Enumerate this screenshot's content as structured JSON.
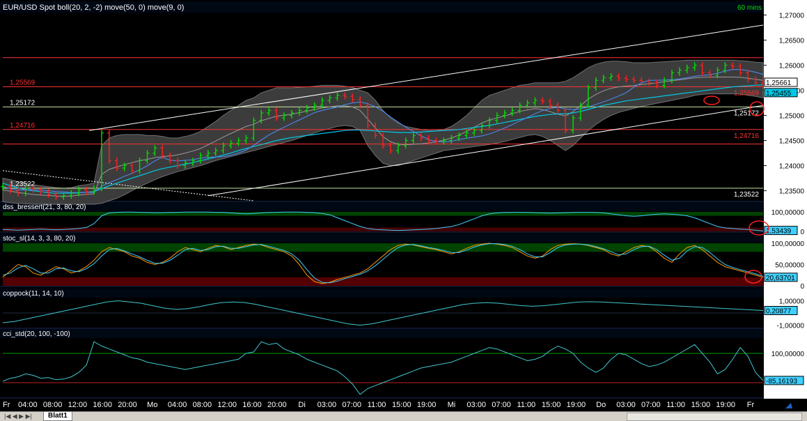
{
  "chart_data": {
    "type": "candlestick",
    "timeframe_label": "60 mins",
    "main_panel": {
      "title": "EUR/USD Spot boll(20, 2, -2) move(50, 0) move(9, 0)",
      "y_ticks": [
        "1,27000",
        "1,26500",
        "1,26000",
        "1,25500",
        "1,25000",
        "1,24500",
        "1,24000",
        "1,23500"
      ],
      "last_prices": [
        "1,25661",
        "1,25455"
      ],
      "h_levels": [
        {
          "value": 1.2615,
          "label": ""
        },
        {
          "value": 1.2557,
          "label": "1,25569"
        },
        {
          "value": 1.2517,
          "label": "1,25172"
        },
        {
          "value": 1.2472,
          "label": "1,24716"
        },
        {
          "value": 1.2443,
          "label": ""
        },
        {
          "value": 1.2355,
          "label": "1,23522"
        }
      ],
      "ohlc_close": [
        1.2358,
        1.235,
        1.2345,
        1.2355,
        1.2352,
        1.2348,
        1.2342,
        1.2338,
        1.234,
        1.2345,
        1.2352,
        1.2348,
        1.2355,
        1.2465,
        1.241,
        1.2395,
        1.24,
        1.239,
        1.241,
        1.2425,
        1.2435,
        1.242,
        1.241,
        1.24,
        1.2405,
        1.241,
        1.242,
        1.2425,
        1.243,
        1.244,
        1.2445,
        1.245,
        1.2455,
        1.249,
        1.2505,
        1.251,
        1.2495,
        1.25,
        1.2505,
        1.251,
        1.2515,
        1.252,
        1.253,
        1.2535,
        1.254,
        1.2538,
        1.2532,
        1.252,
        1.248,
        1.246,
        1.244,
        1.243,
        1.244,
        1.245,
        1.246,
        1.2455,
        1.245,
        1.2448,
        1.245,
        1.2455,
        1.246,
        1.2465,
        1.247,
        1.248,
        1.249,
        1.25,
        1.2505,
        1.251,
        1.252,
        1.2525,
        1.253,
        1.2528,
        1.252,
        1.251,
        1.247,
        1.2495,
        1.252,
        1.2555,
        1.257,
        1.2575,
        1.2578,
        1.2574,
        1.2572,
        1.257,
        1.2568,
        1.2565,
        1.256,
        1.257,
        1.2585,
        1.259,
        1.2595,
        1.26,
        1.2585,
        1.258,
        1.259,
        1.26,
        1.2598,
        1.2585,
        1.2572,
        1.2565,
        1.2562
      ],
      "boll_upper": [
        1.2375,
        1.2372,
        1.2368,
        1.2365,
        1.2362,
        1.236,
        1.2358,
        1.2356,
        1.2355,
        1.2356,
        1.236,
        1.2362,
        1.2365,
        1.244,
        1.2455,
        1.246,
        1.2462,
        1.2462,
        1.2462,
        1.246,
        1.246,
        1.2458,
        1.2455,
        1.2455,
        1.2458,
        1.2462,
        1.2468,
        1.2478,
        1.2488,
        1.25,
        1.251,
        1.252,
        1.253,
        1.2535,
        1.2545,
        1.255,
        1.2555,
        1.2555,
        1.2555,
        1.2556,
        1.2557,
        1.2558,
        1.256,
        1.256,
        1.256,
        1.2558,
        1.2556,
        1.255,
        1.2545,
        1.253,
        1.251,
        1.2495,
        1.2485,
        1.2478,
        1.2475,
        1.2472,
        1.247,
        1.247,
        1.2472,
        1.2478,
        1.2488,
        1.25,
        1.2515,
        1.253,
        1.254,
        1.2545,
        1.255,
        1.2555,
        1.256,
        1.2562,
        1.2565,
        1.2565,
        1.2565,
        1.2565,
        1.2568,
        1.2575,
        1.2585,
        1.2595,
        1.2602,
        1.2606,
        1.2608,
        1.2608,
        1.2607,
        1.2605,
        1.2605,
        1.2605,
        1.2606,
        1.2607,
        1.2608,
        1.2609,
        1.261,
        1.261,
        1.261,
        1.261,
        1.261,
        1.261,
        1.261,
        1.2609,
        1.2608,
        1.2606,
        1.2605
      ],
      "boll_lower": [
        1.2328,
        1.2326,
        1.2325,
        1.2324,
        1.2323,
        1.2323,
        1.2323,
        1.2323,
        1.2323,
        1.2323,
        1.2323,
        1.2323,
        1.2323,
        1.2325,
        1.233,
        1.2335,
        1.2342,
        1.235,
        1.2358,
        1.2365,
        1.2372,
        1.2378,
        1.2383,
        1.2388,
        1.2392,
        1.2396,
        1.24,
        1.2405,
        1.241,
        1.2414,
        1.2418,
        1.2422,
        1.2426,
        1.243,
        1.2434,
        1.2438,
        1.2442,
        1.2446,
        1.245,
        1.2455,
        1.246,
        1.2465,
        1.247,
        1.2474,
        1.2478,
        1.248,
        1.2478,
        1.247,
        1.244,
        1.242,
        1.2405,
        1.24,
        1.24,
        1.2405,
        1.241,
        1.2415,
        1.242,
        1.2425,
        1.243,
        1.2432,
        1.2434,
        1.2436,
        1.2438,
        1.244,
        1.2442,
        1.2445,
        1.2448,
        1.2452,
        1.2456,
        1.246,
        1.2462,
        1.2458,
        1.245,
        1.244,
        1.243,
        1.244,
        1.2455,
        1.247,
        1.2482,
        1.2492,
        1.25,
        1.2506,
        1.251,
        1.2514,
        1.2518,
        1.2521,
        1.2524,
        1.2527,
        1.253,
        1.2533,
        1.2536,
        1.254,
        1.2542,
        1.2543,
        1.2543,
        1.2543,
        1.2543,
        1.2543,
        1.254,
        1.2538,
        1.2535
      ],
      "ma50": [
        1.2365,
        1.236,
        1.2356,
        1.2352,
        1.235,
        1.2348,
        1.2346,
        1.2345,
        1.2345,
        1.2345,
        1.2346,
        1.2347,
        1.2348,
        1.2354,
        1.236,
        1.2365,
        1.237,
        1.2375,
        1.238,
        1.2385,
        1.239,
        1.2394,
        1.2397,
        1.24,
        1.2403,
        1.2406,
        1.241,
        1.2413,
        1.2417,
        1.2421,
        1.2425,
        1.243,
        1.2434,
        1.2438,
        1.2442,
        1.2446,
        1.245,
        1.2453,
        1.2456,
        1.2458,
        1.246,
        1.2462,
        1.2464,
        1.2466,
        1.2468,
        1.247,
        1.2471,
        1.2471,
        1.247,
        1.2469,
        1.2468,
        1.2467,
        1.2466,
        1.2466,
        1.2466,
        1.2467,
        1.2468,
        1.2469,
        1.247,
        1.2471,
        1.2472,
        1.2474,
        1.2476,
        1.2478,
        1.248,
        1.2483,
        1.2486,
        1.2489,
        1.2492,
        1.2495,
        1.2498,
        1.25,
        1.2502,
        1.2503,
        1.2503,
        1.2505,
        1.2508,
        1.2512,
        1.2516,
        1.252,
        1.2523,
        1.2526,
        1.2529,
        1.2531,
        1.2533,
        1.2535,
        1.2537,
        1.2539,
        1.2541,
        1.2543,
        1.2545,
        1.2547,
        1.2549,
        1.2551,
        1.2553,
        1.2555,
        1.2557,
        1.2558,
        1.2559,
        1.256,
        1.2561
      ],
      "upper_trendline": [
        [
          0,
          1.247
        ],
        [
          100,
          1.268
        ]
      ],
      "lower_trendline": [
        [
          27,
          1.234
        ],
        [
          100,
          1.252
        ]
      ]
    },
    "panels": [
      {
        "title": "dss_bressert(21, 3, 80, 20)",
        "y_ticks": [
          "100,00000",
          "0"
        ],
        "last_value": "1,53439",
        "values": [
          10,
          8,
          6,
          8,
          10,
          12,
          10,
          8,
          10,
          12,
          15,
          20,
          40,
          80,
          95,
          98,
          99,
          99,
          98,
          97,
          96,
          96,
          97,
          98,
          99,
          99,
          99,
          99,
          98,
          97,
          95,
          92,
          90,
          92,
          95,
          97,
          98,
          99,
          99,
          99,
          98,
          96,
          92,
          85,
          70,
          55,
          40,
          25,
          15,
          10,
          8,
          6,
          5,
          6,
          8,
          10,
          12,
          15,
          20,
          25,
          35,
          50,
          65,
          80,
          90,
          95,
          97,
          98,
          98,
          97,
          96,
          95,
          94,
          95,
          96,
          97,
          98,
          98,
          97,
          95,
          90,
          85,
          80,
          78,
          80,
          85,
          88,
          90,
          88,
          85,
          80,
          70,
          55,
          40,
          25,
          18,
          15,
          12,
          10,
          6,
          2
        ]
      },
      {
        "title": "stoc_sl(14, 3, 3, 80, 20)",
        "y_ticks": [
          "100,00000",
          "50,00000",
          "0"
        ],
        "last_value": "20,63701",
        "k": [
          20,
          35,
          50,
          45,
          30,
          25,
          35,
          45,
          40,
          30,
          35,
          45,
          60,
          80,
          90,
          85,
          80,
          70,
          65,
          55,
          50,
          55,
          65,
          80,
          90,
          85,
          80,
          88,
          95,
          92,
          85,
          90,
          95,
          98,
          96,
          90,
          85,
          80,
          70,
          50,
          25,
          10,
          5,
          8,
          15,
          20,
          25,
          30,
          40,
          55,
          70,
          85,
          95,
          98,
          96,
          92,
          88,
          85,
          80,
          75,
          80,
          88,
          95,
          98,
          100,
          98,
          95,
          90,
          80,
          70,
          65,
          70,
          85,
          95,
          98,
          99,
          98,
          95,
          90,
          85,
          75,
          70,
          80,
          90,
          95,
          92,
          80,
          65,
          55,
          75,
          90,
          95,
          85,
          70,
          55,
          45,
          40,
          35,
          30,
          25,
          20
        ],
        "d": [
          25,
          30,
          42,
          48,
          40,
          30,
          30,
          40,
          42,
          35,
          33,
          40,
          52,
          70,
          85,
          88,
          82,
          75,
          68,
          60,
          53,
          53,
          60,
          72,
          85,
          88,
          83,
          85,
          92,
          93,
          88,
          88,
          92,
          96,
          97,
          93,
          88,
          83,
          75,
          60,
          38,
          18,
          8,
          7,
          11,
          17,
          22,
          27,
          35,
          47,
          62,
          77,
          90,
          96,
          97,
          94,
          90,
          87,
          83,
          78,
          78,
          84,
          91,
          96,
          99,
          99,
          97,
          93,
          85,
          75,
          68,
          68,
          78,
          90,
          96,
          98,
          98,
          96,
          92,
          87,
          80,
          73,
          75,
          85,
          92,
          93,
          85,
          72,
          60,
          65,
          82,
          92,
          90,
          78,
          63,
          50,
          43,
          38,
          33,
          28,
          22
        ]
      },
      {
        "title": "coppock(11, 14, 10)",
        "y_ticks": [
          "1,00000",
          "-1,00000"
        ],
        "last_value": "0,20877",
        "values": [
          -0.8,
          -0.7,
          -0.5,
          -0.3,
          -0.1,
          0.1,
          0.3,
          0.5,
          0.7,
          0.9,
          1.0,
          0.9,
          0.8,
          0.6,
          0.4,
          0.3,
          0.35,
          0.5,
          0.7,
          0.85,
          0.9,
          0.85,
          0.7,
          0.5,
          0.3,
          0.1,
          -0.1,
          -0.3,
          -0.5,
          -0.7,
          -0.9,
          -1.0,
          -0.9,
          -0.7,
          -0.5,
          -0.3,
          -0.1,
          0.1,
          0.3,
          0.5,
          0.7,
          0.8,
          0.85,
          0.8,
          0.7,
          0.6,
          0.55,
          0.6,
          0.7,
          0.8,
          0.9,
          0.92,
          0.9,
          0.85,
          0.8,
          0.75,
          0.7,
          0.65,
          0.6,
          0.55,
          0.5,
          0.45,
          0.4,
          0.35,
          0.3,
          0.25,
          0.2
        ]
      },
      {
        "title": "cci_std(20, 100, -100)",
        "y_ticks": [
          "100,00000"
        ],
        "last_value": "-85,16193",
        "values": [
          -90,
          -70,
          -60,
          -40,
          -50,
          -70,
          -65,
          -80,
          -75,
          -60,
          -30,
          20,
          180,
          150,
          130,
          110,
          90,
          70,
          60,
          40,
          30,
          20,
          10,
          0,
          -10,
          0,
          10,
          20,
          30,
          40,
          50,
          60,
          100,
          110,
          180,
          160,
          170,
          130,
          110,
          90,
          60,
          40,
          20,
          0,
          -20,
          -60,
          -110,
          -180,
          -140,
          -120,
          -100,
          -80,
          -60,
          -40,
          -20,
          0,
          10,
          20,
          30,
          40,
          60,
          80,
          100,
          120,
          140,
          130,
          110,
          90,
          70,
          50,
          60,
          80,
          120,
          150,
          130,
          100,
          40,
          0,
          -30,
          0,
          60,
          100,
          90,
          60,
          30,
          10,
          20,
          40,
          70,
          100,
          130,
          160,
          100,
          40,
          -40,
          -10,
          60,
          140,
          80,
          -30,
          -85
        ]
      }
    ],
    "x_ticks": [
      "Fr",
      "04:00",
      "08:00",
      "12:00",
      "16:00",
      "20:00",
      "Mo",
      "04:00",
      "08:00",
      "12:00",
      "16:00",
      "20:00",
      "Di",
      "03:00",
      "07:00",
      "11:00",
      "15:00",
      "19:00",
      "Mi",
      "03:00",
      "07:00",
      "11:00",
      "15:00",
      "19:00",
      "Do",
      "03:00",
      "07:00",
      "11:00",
      "15:00",
      "19:00",
      "Fr"
    ],
    "colors": {
      "up": "#00e000",
      "down": "#ff2020",
      "boll": "#808080",
      "ma": "#00c8e6",
      "k": "#ff9900",
      "d": "#40d0ff",
      "level": "#ff3030",
      "panel_title": "#ffffff"
    }
  },
  "tabbar": {
    "sheet": "Blatt1",
    "nav": "|◀ ◀ ▶ ▶|"
  }
}
